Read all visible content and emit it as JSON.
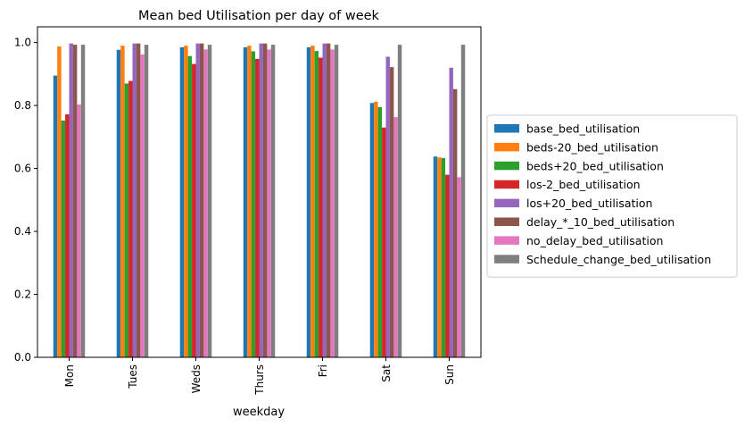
{
  "chart_data": {
    "type": "bar",
    "title": "Mean bed Utilisation per day of week",
    "xlabel": "weekday",
    "ylabel": "",
    "ylim": [
      0,
      1.05
    ],
    "yticks": [
      "0.0",
      "0.2",
      "0.4",
      "0.6",
      "0.8",
      "1.0"
    ],
    "grid": false,
    "legend_position": "center-right",
    "categories": [
      "Mon",
      "Tues",
      "Weds",
      "Thurs",
      "Fri",
      "Sat",
      "Sun"
    ],
    "series": [
      {
        "name": "base_bed_utilisation",
        "color": "#1f77b4",
        "values": [
          0.895,
          0.977,
          0.985,
          0.985,
          0.985,
          0.808,
          0.638
        ]
      },
      {
        "name": "beds-20_bed_utilisation",
        "color": "#ff7f0e",
        "values": [
          0.988,
          0.99,
          0.99,
          0.99,
          0.99,
          0.812,
          0.635
        ]
      },
      {
        "name": "beds+20_bed_utilisation",
        "color": "#2ca02c",
        "values": [
          0.752,
          0.87,
          0.957,
          0.972,
          0.973,
          0.795,
          0.633
        ]
      },
      {
        "name": "los-2_bed_utilisation",
        "color": "#d62728",
        "values": [
          0.772,
          0.878,
          0.932,
          0.948,
          0.952,
          0.73,
          0.58
        ]
      },
      {
        "name": "los+20_bed_utilisation",
        "color": "#9467bd",
        "values": [
          0.997,
          0.997,
          0.997,
          0.997,
          0.997,
          0.955,
          0.92
        ]
      },
      {
        "name": "delay_*_10_bed_utilisation",
        "color": "#8c564b",
        "values": [
          0.993,
          0.997,
          0.997,
          0.997,
          0.997,
          0.922,
          0.852
        ]
      },
      {
        "name": "no_delay_bed_utilisation",
        "color": "#e377c2",
        "values": [
          0.803,
          0.962,
          0.978,
          0.978,
          0.978,
          0.763,
          0.572
        ]
      },
      {
        "name": "Schedule_change_bed_utilisation",
        "color": "#7f7f7f",
        "values": [
          0.993,
          0.993,
          0.993,
          0.993,
          0.993,
          0.993,
          0.993
        ]
      }
    ]
  }
}
